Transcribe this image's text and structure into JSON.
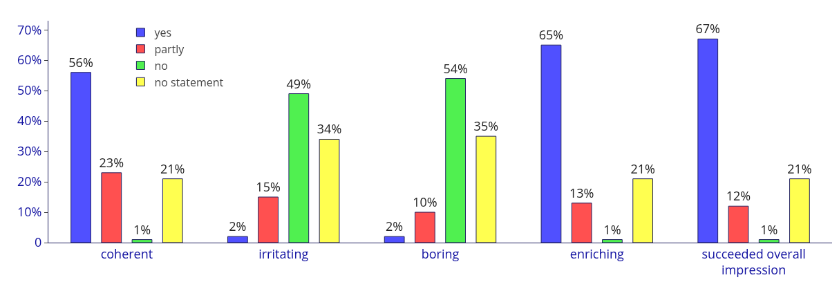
{
  "chart_data": {
    "type": "bar",
    "categories": [
      "coherent",
      "irritating",
      "boring",
      "enriching",
      "succeeded overall impression"
    ],
    "series": [
      {
        "name": "yes",
        "color": "#5050ff",
        "values": [
          56,
          2,
          2,
          65,
          67
        ],
        "value_labels": [
          "56%",
          "2%",
          "2%",
          "65%",
          "67%"
        ]
      },
      {
        "name": "partly",
        "color": "#ff5050",
        "values": [
          23,
          15,
          10,
          13,
          12
        ],
        "value_labels": [
          "23%",
          "15%",
          "10%",
          "13%",
          "12%"
        ]
      },
      {
        "name": "no",
        "color": "#50f050",
        "values": [
          1,
          49,
          54,
          1,
          1
        ],
        "value_labels": [
          "1%",
          "49%",
          "54%",
          "1%",
          "1%"
        ]
      },
      {
        "name": "no statement",
        "color": "#ffff50",
        "values": [
          21,
          34,
          35,
          21,
          21
        ],
        "value_labels": [
          "21%",
          "34%",
          "35%",
          "21%",
          "21%"
        ]
      }
    ],
    "ylim": [
      0,
      73
    ],
    "yticks": [
      0,
      {
        "value": 10,
        "label": "10%"
      },
      {
        "value": 20,
        "label": "20%"
      },
      {
        "value": 30,
        "label": "30%"
      },
      {
        "value": 40,
        "label": "40%"
      },
      {
        "value": 50,
        "label": "50%"
      },
      {
        "value": 60,
        "label": "60%"
      },
      {
        "value": 70,
        "label": "70%"
      }
    ],
    "grid": false,
    "legend": "top left"
  }
}
